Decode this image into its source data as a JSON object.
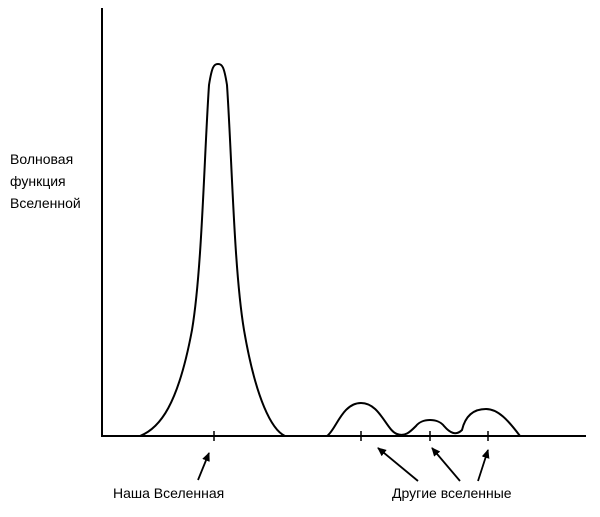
{
  "ylabel_lines": [
    "Волновая",
    "функция",
    "Вселенной"
  ],
  "caption_ours": "Наша Вселенная",
  "caption_others": "Другие вселенные",
  "colors": {
    "ink": "#000000",
    "background": "#ffffff"
  }
}
